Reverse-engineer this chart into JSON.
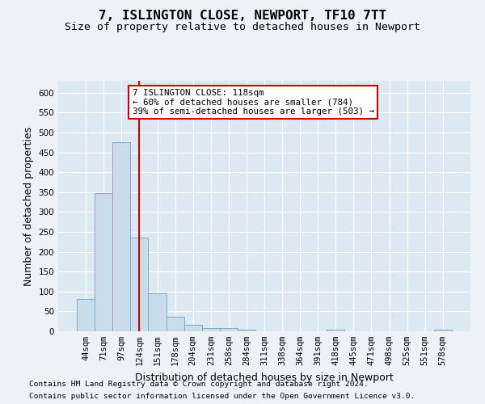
{
  "title_line1": "7, ISLINGTON CLOSE, NEWPORT, TF10 7TT",
  "title_line2": "Size of property relative to detached houses in Newport",
  "xlabel": "Distribution of detached houses by size in Newport",
  "ylabel": "Number of detached properties",
  "categories": [
    "44sqm",
    "71sqm",
    "97sqm",
    "124sqm",
    "151sqm",
    "178sqm",
    "204sqm",
    "231sqm",
    "258sqm",
    "284sqm",
    "311sqm",
    "338sqm",
    "364sqm",
    "391sqm",
    "418sqm",
    "445sqm",
    "471sqm",
    "498sqm",
    "525sqm",
    "551sqm",
    "578sqm"
  ],
  "values": [
    82,
    347,
    475,
    235,
    95,
    37,
    16,
    8,
    8,
    5,
    0,
    0,
    0,
    0,
    5,
    0,
    0,
    0,
    0,
    0,
    5
  ],
  "bar_color": "#c9dcea",
  "bar_edge_color": "#7aacc8",
  "vline_x_index": 3,
  "vline_color": "#cc0000",
  "annotation_text": "7 ISLINGTON CLOSE: 118sqm\n← 60% of detached houses are smaller (784)\n39% of semi-detached houses are larger (503) →",
  "annotation_box_color": "#cc0000",
  "ylim": [
    0,
    630
  ],
  "yticks": [
    0,
    50,
    100,
    150,
    200,
    250,
    300,
    350,
    400,
    450,
    500,
    550,
    600
  ],
  "footer_line1": "Contains HM Land Registry data © Crown copyright and database right 2024.",
  "footer_line2": "Contains public sector information licensed under the Open Government Licence v3.0.",
  "background_color": "#eef2f7",
  "plot_bg_color": "#dce8f2",
  "grid_color": "#ffffff",
  "title_fontsize": 11.5,
  "subtitle_fontsize": 9.5,
  "axis_label_fontsize": 9,
  "tick_fontsize": 7.5,
  "footer_fontsize": 6.8,
  "annotation_fontsize": 7.8
}
